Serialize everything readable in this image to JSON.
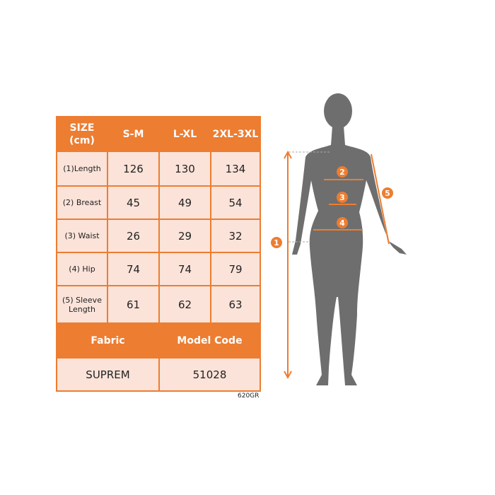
{
  "table": {
    "header": [
      "SIZE\n(cm)",
      "S-M",
      "L-XL",
      "2XL-3XL"
    ],
    "rows": [
      {
        "label": "(1)Length",
        "values": [
          "126",
          "130",
          "134"
        ]
      },
      {
        "label": "(2) Breast",
        "values": [
          "45",
          "49",
          "54"
        ]
      },
      {
        "label": "(3) Waist",
        "values": [
          "26",
          "29",
          "32"
        ]
      },
      {
        "label": "(4) Hip",
        "values": [
          "74",
          "74",
          "79"
        ]
      },
      {
        "label": "(5) Sleeve Length",
        "values": [
          "61",
          "62",
          "63"
        ]
      }
    ],
    "footer_header": [
      "Fabric",
      "Model Code"
    ],
    "footer_values": [
      "SUPREM",
      "51028"
    ]
  },
  "product_code": "620GR",
  "markers": [
    "1",
    "2",
    "3",
    "4",
    "5"
  ],
  "colors": {
    "accent": "#ED7D31",
    "cell": "#FBE3D9",
    "silhouette": "#6E6E6E"
  }
}
